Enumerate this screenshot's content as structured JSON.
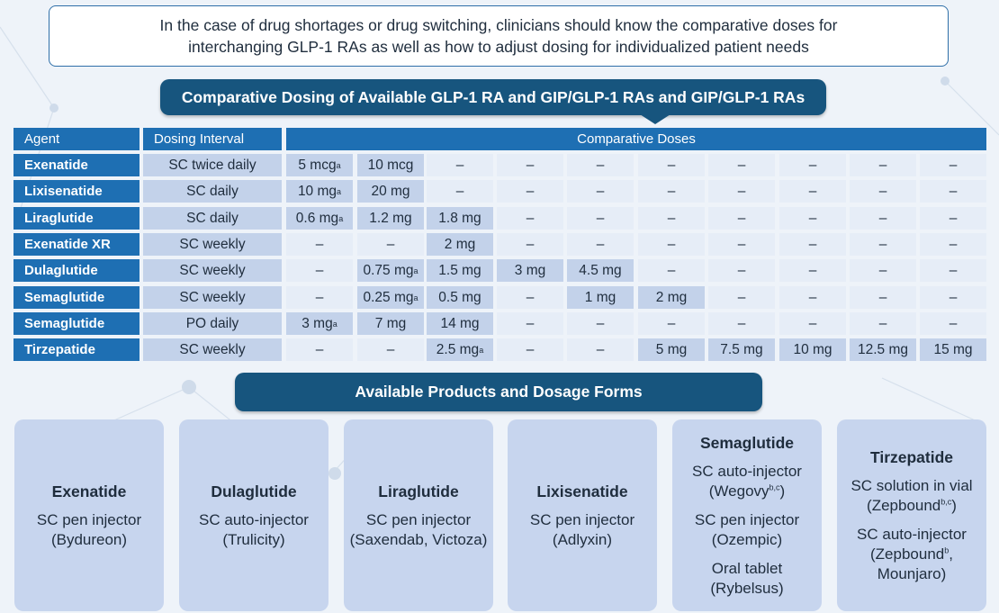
{
  "intro": {
    "line1": "In the case of drug shortages or drug switching, clinicians should know the comparative doses for",
    "line2": "interchanging GLP-1 RAs as well as how to adjust dosing for individualized patient needs"
  },
  "dosing_banner": "Comparative Dosing of Available GLP-1 RA and GIP/GLP-1 RAs and GIP/GLP-1 RAs",
  "table": {
    "headers": {
      "agent": "Agent",
      "interval": "Dosing Interval",
      "doses": "Comparative Doses"
    },
    "rows": [
      {
        "agent": "Exenatide",
        "interval": "SC twice daily",
        "doses": [
          {
            "v": "5 mcg",
            "sup": "a"
          },
          {
            "v": "10 mcg"
          },
          {
            "v": "–"
          },
          {
            "v": "–"
          },
          {
            "v": "–"
          },
          {
            "v": "–"
          },
          {
            "v": "–"
          },
          {
            "v": "–"
          },
          {
            "v": "–"
          },
          {
            "v": "–"
          }
        ]
      },
      {
        "agent": "Lixisenatide",
        "interval": "SC daily",
        "doses": [
          {
            "v": "10 mg",
            "sup": "a"
          },
          {
            "v": "20 mg"
          },
          {
            "v": "–"
          },
          {
            "v": "–"
          },
          {
            "v": "–"
          },
          {
            "v": "–"
          },
          {
            "v": "–"
          },
          {
            "v": "–"
          },
          {
            "v": "–"
          },
          {
            "v": "–"
          }
        ]
      },
      {
        "agent": "Liraglutide",
        "interval": "SC daily",
        "doses": [
          {
            "v": "0.6 mg",
            "sup": "a"
          },
          {
            "v": "1.2 mg"
          },
          {
            "v": "1.8 mg"
          },
          {
            "v": "–"
          },
          {
            "v": "–"
          },
          {
            "v": "–"
          },
          {
            "v": "–"
          },
          {
            "v": "–"
          },
          {
            "v": "–"
          },
          {
            "v": "–"
          }
        ]
      },
      {
        "agent": "Exenatide XR",
        "interval": "SC weekly",
        "doses": [
          {
            "v": "–"
          },
          {
            "v": "–"
          },
          {
            "v": "2 mg"
          },
          {
            "v": "–"
          },
          {
            "v": "–"
          },
          {
            "v": "–"
          },
          {
            "v": "–"
          },
          {
            "v": "–"
          },
          {
            "v": "–"
          },
          {
            "v": "–"
          }
        ]
      },
      {
        "agent": "Dulaglutide",
        "interval": "SC weekly",
        "doses": [
          {
            "v": "–"
          },
          {
            "v": "0.75 mg",
            "sup": "a"
          },
          {
            "v": "1.5 mg"
          },
          {
            "v": "3 mg"
          },
          {
            "v": "4.5 mg"
          },
          {
            "v": "–"
          },
          {
            "v": "–"
          },
          {
            "v": "–"
          },
          {
            "v": "–"
          },
          {
            "v": "–"
          }
        ]
      },
      {
        "agent": "Semaglutide",
        "interval": "SC weekly",
        "doses": [
          {
            "v": "–"
          },
          {
            "v": "0.25 mg",
            "sup": "a"
          },
          {
            "v": "0.5 mg"
          },
          {
            "v": "–"
          },
          {
            "v": "1 mg"
          },
          {
            "v": "2 mg"
          },
          {
            "v": "–"
          },
          {
            "v": "–"
          },
          {
            "v": "–"
          },
          {
            "v": "–"
          }
        ]
      },
      {
        "agent": "Semaglutide",
        "interval": "PO daily",
        "doses": [
          {
            "v": "3 mg",
            "sup": "a"
          },
          {
            "v": "7 mg"
          },
          {
            "v": "14 mg"
          },
          {
            "v": "–"
          },
          {
            "v": "–"
          },
          {
            "v": "–"
          },
          {
            "v": "–"
          },
          {
            "v": "–"
          },
          {
            "v": "–"
          },
          {
            "v": "–"
          }
        ]
      },
      {
        "agent": "Tirzepatide",
        "interval": "SC weekly",
        "doses": [
          {
            "v": "–"
          },
          {
            "v": "–"
          },
          {
            "v": "2.5 mg",
            "sup": "a"
          },
          {
            "v": "–"
          },
          {
            "v": "–"
          },
          {
            "v": "5 mg"
          },
          {
            "v": "7.5 mg"
          },
          {
            "v": "10 mg"
          },
          {
            "v": "12.5 mg"
          },
          {
            "v": "15 mg"
          }
        ]
      }
    ]
  },
  "products_banner": "Available Products and Dosage Forms",
  "products": [
    {
      "name": "Exenatide",
      "forms": [
        {
          "l1": "SC pen injector",
          "l2": "(Bydureon)"
        }
      ]
    },
    {
      "name": "Dulaglutide",
      "forms": [
        {
          "l1": "SC auto-injector",
          "l2": "(Trulicity)"
        }
      ]
    },
    {
      "name": "Liraglutide",
      "forms": [
        {
          "l1": "SC pen injector",
          "l2": "(Saxendab, Victoza)"
        }
      ]
    },
    {
      "name": "Lixisenatide",
      "forms": [
        {
          "l1": "SC pen injector",
          "l2": "(Adlyxin)"
        }
      ]
    },
    {
      "name": "Semaglutide",
      "forms": [
        {
          "l1": "SC auto-injector",
          "l2": "(Wegovy",
          "sup": "b,c",
          "l2end": ")"
        },
        {
          "l1": "SC pen injector",
          "l2": "(Ozempic)"
        },
        {
          "l1": "Oral tablet",
          "l2": "(Rybelsus)"
        }
      ]
    },
    {
      "name": "Tirzepatide",
      "forms": [
        {
          "l1": "SC solution in vial",
          "l2": "(Zepbound",
          "sup": "b,c",
          "l2end": ")"
        },
        {
          "l1": "SC auto-injector",
          "l2": "(Zepbound",
          "sup": "b",
          "l2end": ",",
          "l3": "Mounjaro)"
        }
      ]
    }
  ]
}
